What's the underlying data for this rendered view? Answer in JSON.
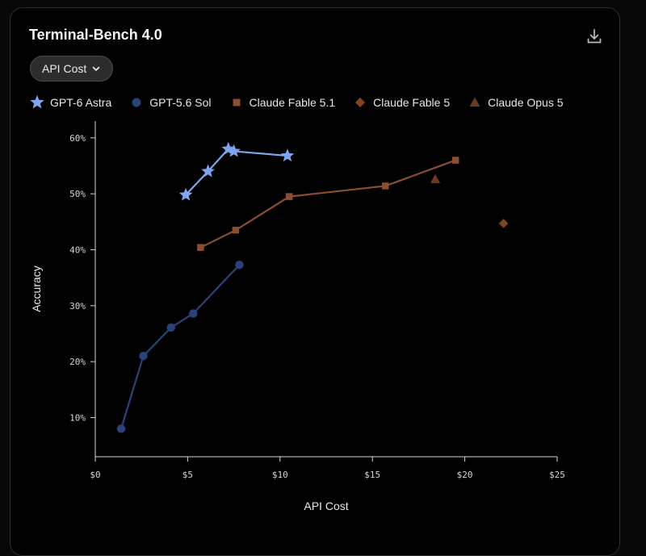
{
  "header": {
    "title": "Terminal-Bench 4.0",
    "download_icon": "download-icon"
  },
  "controls": {
    "metric_selector": {
      "selected": "API Cost",
      "icon": "chevron-down-icon"
    }
  },
  "colors": {
    "background": "#000000",
    "gpt6_astra": "#7ea6ee",
    "gpt56_sol": "#2b4279",
    "claude_fable_51": "#8a4e33",
    "claude_fable_5": "#7e4428",
    "claude_opus_5": "#6e3b22",
    "axis": "#d6d6d6"
  },
  "chart_data": {
    "type": "scatter",
    "title": "Terminal-Bench 4.0",
    "xlabel": "API Cost",
    "ylabel": "Accuracy",
    "xlim": [
      0,
      25
    ],
    "ylim": [
      3,
      63
    ],
    "x_ticks": [
      0,
      5,
      10,
      15,
      20,
      25
    ],
    "x_tick_labels": [
      "$0",
      "$5",
      "$10",
      "$15",
      "$20",
      "$25"
    ],
    "y_ticks": [
      10,
      20,
      30,
      40,
      50,
      60
    ],
    "y_tick_labels": [
      "10%",
      "20%",
      "30%",
      "40%",
      "50%",
      "60%"
    ],
    "grid": false,
    "legend_position": "top",
    "series": [
      {
        "name": "GPT-6 Astra",
        "marker": "star",
        "connected": true,
        "color": "#7ea6ee",
        "x": [
          4.9,
          6.1,
          7.2,
          7.5,
          10.4
        ],
        "y": [
          49.8,
          54.0,
          58.0,
          57.6,
          56.8
        ]
      },
      {
        "name": "GPT-5.6 Sol",
        "marker": "circle",
        "connected": true,
        "color": "#2b4279",
        "x": [
          1.4,
          2.6,
          4.1,
          5.3,
          7.8
        ],
        "y": [
          8.0,
          21.0,
          26.1,
          28.6,
          37.3
        ]
      },
      {
        "name": "Claude Fable 5.1",
        "marker": "square",
        "connected": true,
        "color": "#8a4e33",
        "x": [
          5.7,
          7.6,
          10.5,
          15.7,
          19.5
        ],
        "y": [
          40.4,
          43.5,
          49.5,
          51.4,
          56.0
        ]
      },
      {
        "name": "Claude Fable 5",
        "marker": "diamond",
        "connected": false,
        "color": "#7e4428",
        "x": [
          22.1
        ],
        "y": [
          44.7
        ]
      },
      {
        "name": "Claude Opus 5",
        "marker": "triangle",
        "connected": false,
        "color": "#6e3b22",
        "x": [
          18.4
        ],
        "y": [
          52.6
        ]
      }
    ]
  }
}
